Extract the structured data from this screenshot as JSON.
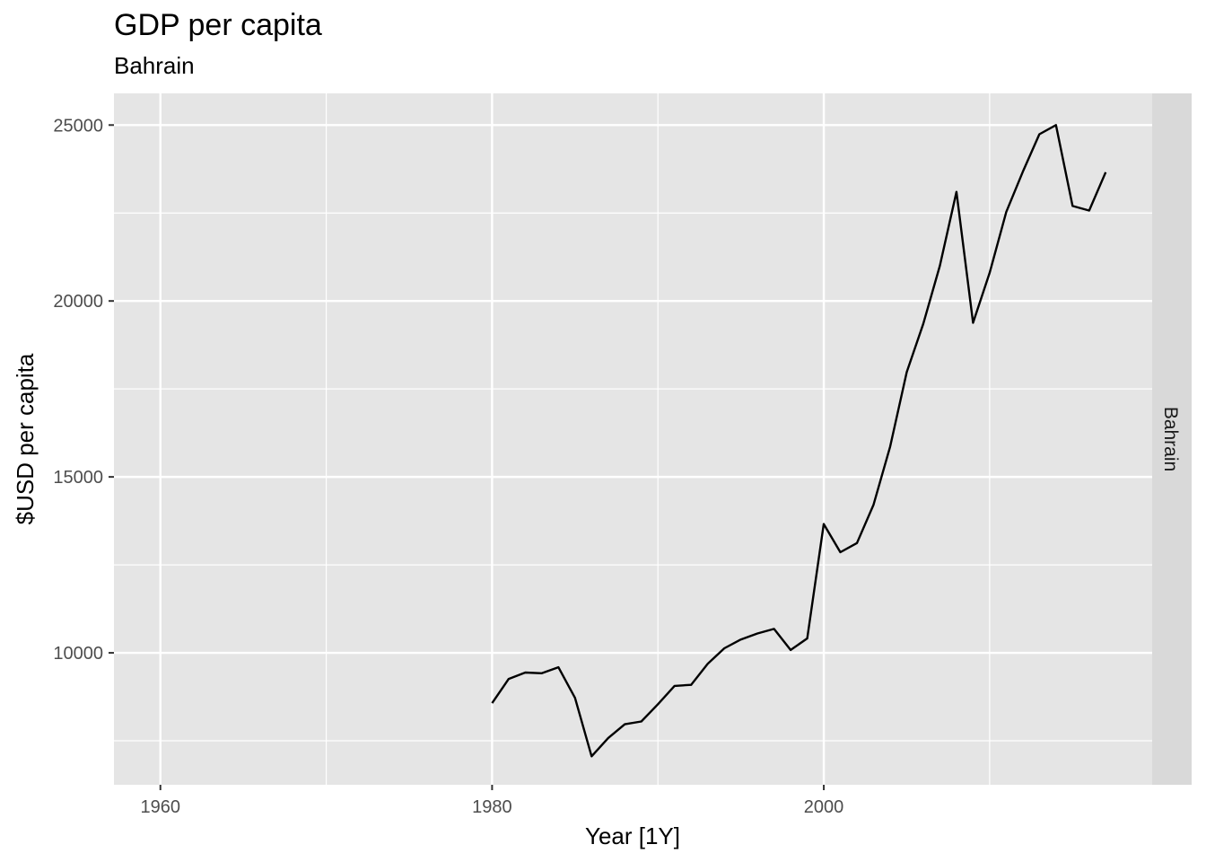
{
  "chart_data": {
    "type": "line",
    "title": "GDP per capita",
    "subtitle": "Bahrain",
    "xlabel": "Year [1Y]",
    "ylabel": "$USD per capita",
    "facet_label": "Bahrain",
    "xlim": [
      1957.2,
      2019.8
    ],
    "ylim": [
      6250,
      25900
    ],
    "x_ticks": [
      1960,
      1980,
      2000
    ],
    "x_minor_ticks": [
      1970,
      1990,
      2010
    ],
    "y_ticks": [
      10000,
      15000,
      20000,
      25000
    ],
    "y_minor_ticks": [
      7500,
      12500,
      17500,
      22500
    ],
    "grid": true,
    "legend": "none",
    "colors": {
      "panel_background": "#e5e5e5",
      "grid": "#ffffff",
      "strip_background": "#d9d9d9",
      "line": "#000000"
    },
    "series": [
      {
        "x": [
          1980,
          1981,
          1982,
          1983,
          1984,
          1985,
          1986,
          1987,
          1988,
          1989,
          1990,
          1991,
          1992,
          1993,
          1994,
          1995,
          1996,
          1997,
          1998,
          1999,
          2000,
          2001,
          2002,
          2003,
          2004,
          2005,
          2006,
          2007,
          2008,
          2009,
          2010,
          2011,
          2012,
          2013,
          2014,
          2015,
          2016,
          2017
        ],
        "values": [
          8570,
          9260,
          9440,
          9420,
          9590,
          8720,
          7060,
          7580,
          7970,
          8050,
          8540,
          9060,
          9090,
          9690,
          10130,
          10380,
          10550,
          10680,
          10080,
          10410,
          13660,
          12860,
          13120,
          14210,
          15860,
          17980,
          19350,
          21000,
          23100,
          19380,
          20800,
          22530,
          23670,
          24740,
          25000,
          22700,
          22570,
          23660
        ]
      }
    ]
  }
}
